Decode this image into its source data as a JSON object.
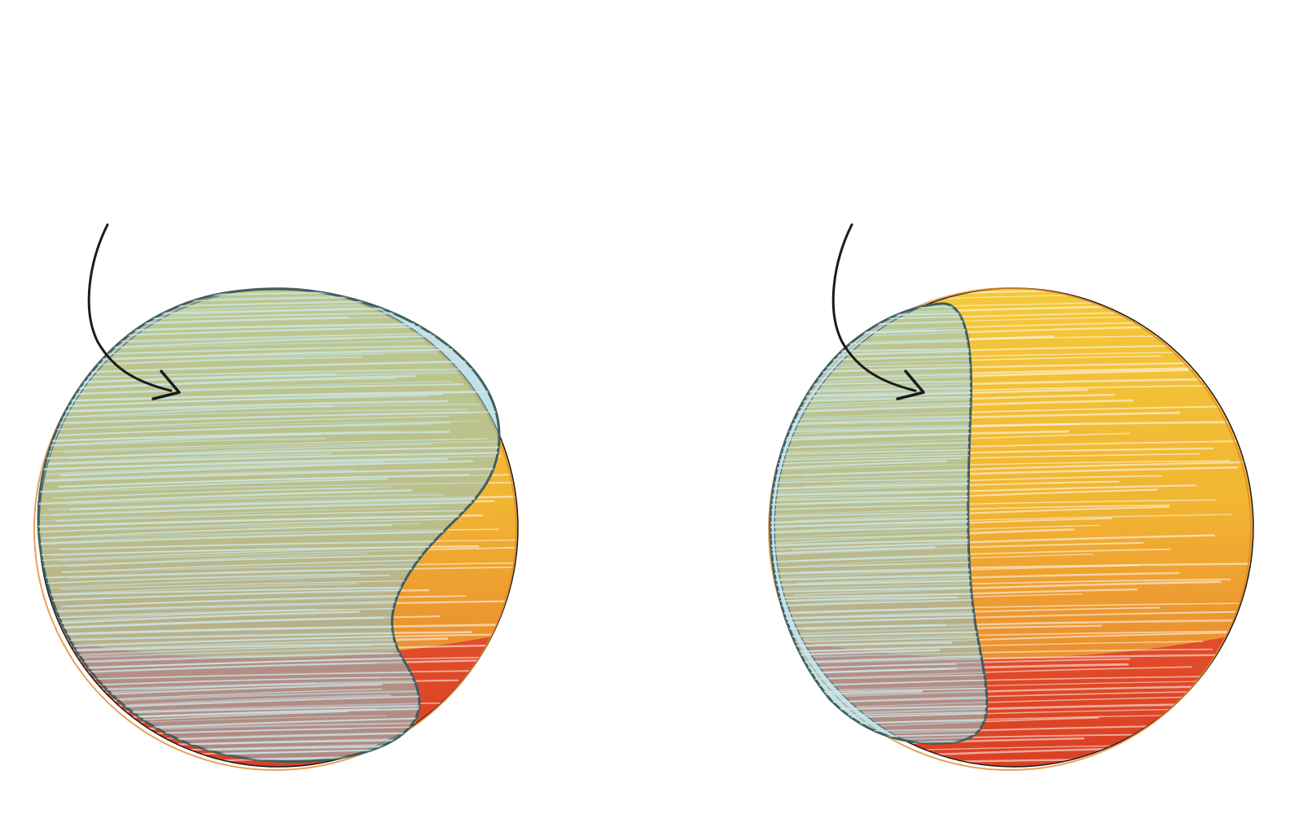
{
  "diagram": {
    "panels": [
      {
        "id": "left",
        "overlay_shape": "blob-covering-most-of-circle"
      },
      {
        "id": "right",
        "overlay_shape": "crescent-left-portion"
      }
    ]
  },
  "colors": {
    "background": "#ffffff",
    "yellow": "#f2c436",
    "orange": "#ec9530",
    "red": "#dd4527",
    "overlay_fill": "#8fc7d2",
    "overlay_stroke": "#3f5e60",
    "arrow": "#1b1b1b",
    "scribble_light": "#ffffff",
    "scribble_blue": "#cfe8ea"
  },
  "icons": {
    "arrow": "curved-arrow-icon"
  }
}
